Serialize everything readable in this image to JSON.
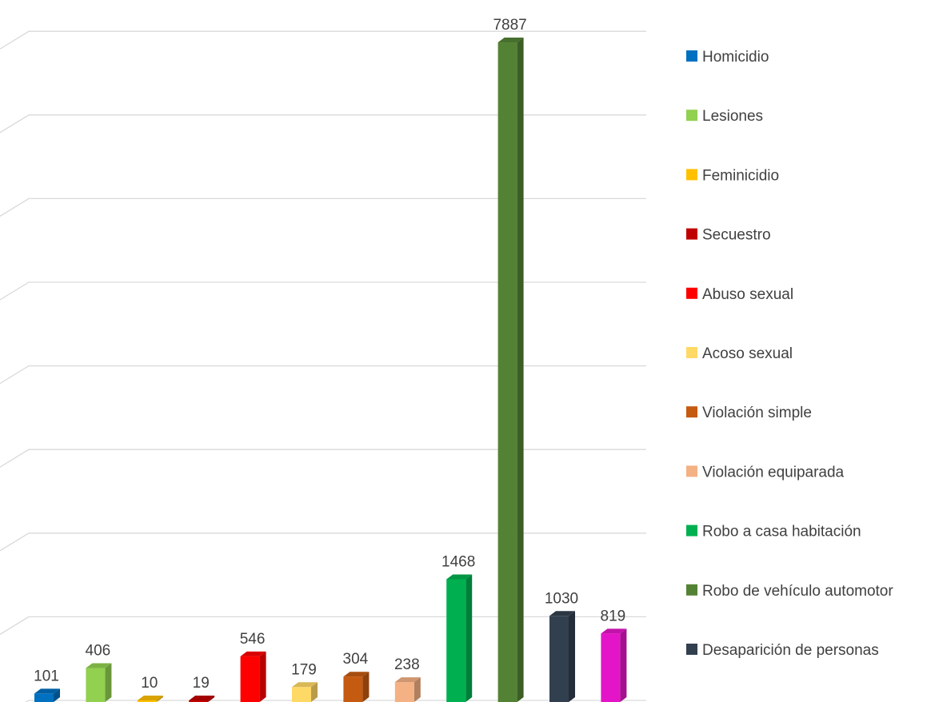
{
  "chart_data": {
    "type": "bar",
    "style": "3d-clustered-column",
    "title": "",
    "xlabel": "",
    "ylabel": "",
    "ylim": [
      0,
      8000
    ],
    "grid": true,
    "legend_position": "right",
    "bars": [
      {
        "label": "Homicidio",
        "value": 101,
        "color": "#0070C0"
      },
      {
        "label": "Lesiones",
        "value": 406,
        "color": "#92D050"
      },
      {
        "label": "Feminicidio",
        "value": 10,
        "color": "#FFC000"
      },
      {
        "label": "Secuestro",
        "value": 19,
        "color": "#C00000"
      },
      {
        "label": "Abuso sexual",
        "value": 546,
        "color": "#FF0000"
      },
      {
        "label": "Acoso sexual",
        "value": 179,
        "color": "#FFD966"
      },
      {
        "label": "Violación simple",
        "value": 304,
        "color": "#C55A11"
      },
      {
        "label": "Violación equiparada",
        "value": 238,
        "color": "#F4B183"
      },
      {
        "label": "Robo a casa habitación",
        "value": 1468,
        "color": "#00B050"
      },
      {
        "label": "Robo de vehículo automotor",
        "value": 7887,
        "color": "#548235"
      },
      {
        "label": "Desaparición de personas",
        "value": 1030,
        "color": "#323F4F"
      },
      {
        "label": "",
        "value": 819,
        "color": "#E415C8"
      }
    ],
    "legend": [
      "Homicidio",
      "Lesiones",
      "Feminicidio",
      "Secuestro",
      "Abuso sexual",
      "Acoso sexual",
      "Violación simple",
      "Violación equiparada",
      "Robo a casa habitación",
      "Robo de vehículo automotor",
      "Desaparición de personas"
    ]
  }
}
